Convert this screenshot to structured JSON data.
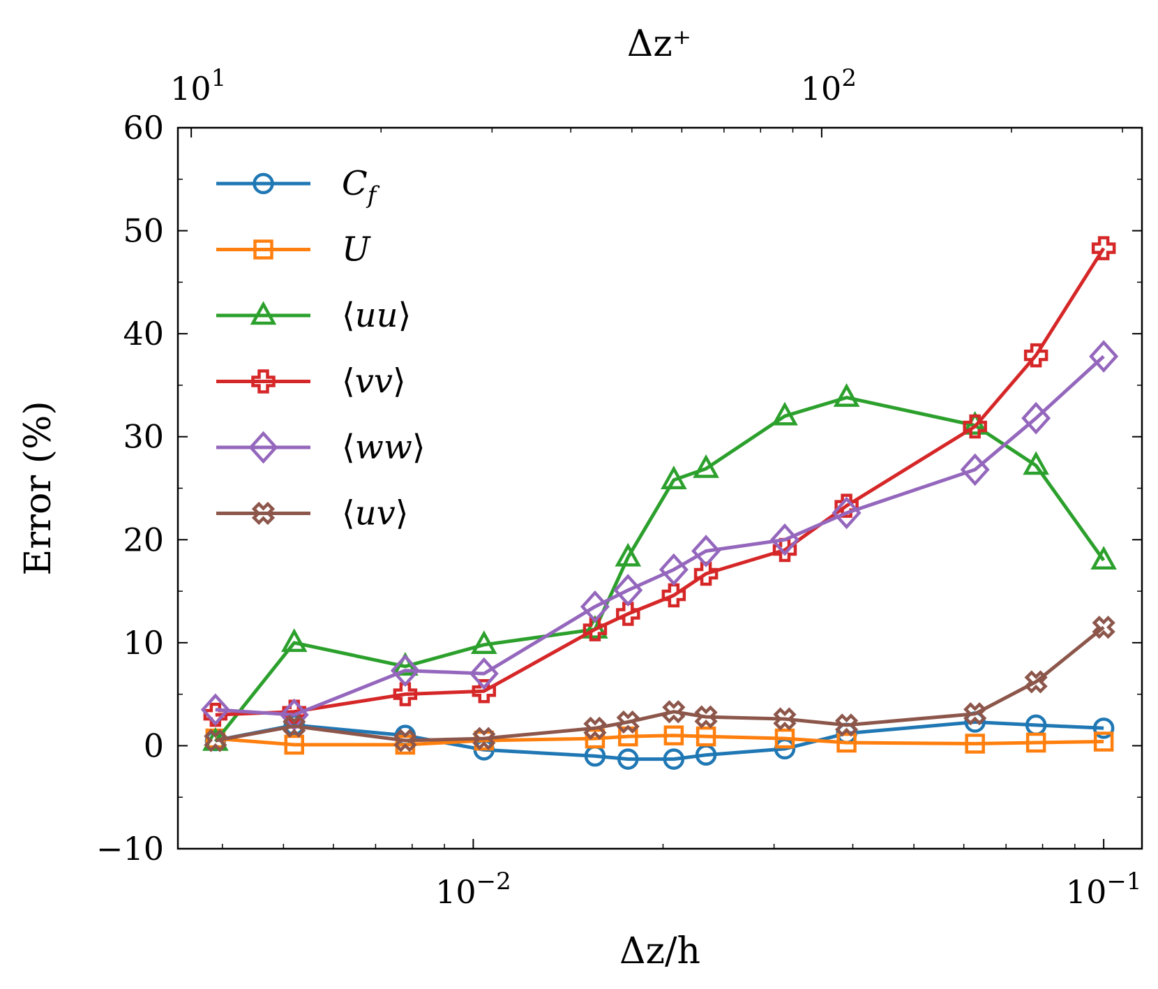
{
  "chart_data": {
    "type": "line",
    "xscale": "log",
    "xlabel": "Δz/h",
    "ylabel": "Error (%)",
    "top_xlabel": "Δz⁺",
    "xlim": [
      0.0034,
      0.115
    ],
    "ylim": [
      -10,
      60
    ],
    "yticks": [
      -10,
      0,
      10,
      20,
      30,
      40,
      50,
      60
    ],
    "ytick_labels": [
      "−10",
      "0",
      "10",
      "20",
      "30",
      "40",
      "50",
      "60"
    ],
    "xticks": [
      {
        "value": 0.01,
        "base": "10",
        "exp": "−2"
      },
      {
        "value": 0.1,
        "base": "10",
        "exp": "−1"
      }
    ],
    "top_xticks": [
      {
        "value": 0.00357,
        "base": "10",
        "exp": "1"
      },
      {
        "value": 0.0357,
        "base": "10",
        "exp": "2"
      }
    ],
    "top_xlim": [
      9.52,
      322
    ],
    "x": [
      0.0039,
      0.0052,
      0.0078,
      0.0104,
      0.0156,
      0.0176,
      0.0208,
      0.0234,
      0.0312,
      0.0391,
      0.0625,
      0.0781,
      0.1
    ],
    "series": [
      {
        "name": "C_f",
        "label_main": "C",
        "label_sub": "f",
        "label_pre": "",
        "label_post": "",
        "color": "#1f77b4",
        "marker": "circle",
        "x": [
          0.0039,
          0.0052,
          0.0078,
          0.0104,
          0.0156,
          0.0176,
          0.0208,
          0.0234,
          0.0312,
          0.0391,
          0.0625,
          0.0781,
          0.1
        ],
        "values": [
          0.5,
          2.0,
          1.0,
          -0.4,
          -1.0,
          -1.3,
          -1.3,
          -0.9,
          -0.3,
          1.2,
          2.3,
          2.0,
          1.7
        ]
      },
      {
        "name": "U",
        "label_main": "U",
        "label_sub": "",
        "label_pre": "",
        "label_post": "",
        "color": "#ff7f0e",
        "marker": "square",
        "x": [
          0.0039,
          0.0052,
          0.0078,
          0.0104,
          0.0156,
          0.0176,
          0.0208,
          0.0234,
          0.0312,
          0.0391,
          0.0625,
          0.0781,
          0.1
        ],
        "values": [
          0.7,
          0.1,
          0.1,
          0.5,
          0.7,
          0.9,
          1.0,
          0.9,
          0.7,
          0.3,
          0.2,
          0.3,
          0.4
        ]
      },
      {
        "name": "⟨uu⟩",
        "label_main": "uu",
        "label_sub": "",
        "label_pre": "⟨",
        "label_post": "⟩",
        "color": "#2ca02c",
        "marker": "triangle",
        "x": [
          0.0039,
          0.0052,
          0.0078,
          0.0104,
          0.0156,
          0.0176,
          0.0208,
          0.0234,
          0.0312,
          0.0391,
          0.0625,
          0.0781,
          0.1
        ],
        "values": [
          0.4,
          10.0,
          7.7,
          9.8,
          11.3,
          18.3,
          25.8,
          26.9,
          32.0,
          33.8,
          31.1,
          27.2,
          18.0
        ]
      },
      {
        "name": "⟨vv⟩",
        "label_main": "vv",
        "label_sub": "",
        "label_pre": "⟨",
        "label_post": "⟩",
        "color": "#d62728",
        "marker": "plus",
        "x": [
          0.0039,
          0.0052,
          0.0078,
          0.0104,
          0.0156,
          0.0176,
          0.0208,
          0.0234,
          0.0312,
          0.0391,
          0.0625,
          0.0781,
          0.1
        ],
        "values": [
          3.0,
          3.3,
          5.0,
          5.3,
          11.3,
          12.8,
          14.6,
          16.7,
          19.0,
          23.3,
          31.0,
          37.9,
          48.3
        ]
      },
      {
        "name": "⟨ww⟩",
        "label_main": "ww",
        "label_sub": "",
        "label_pre": "⟨",
        "label_post": "⟩",
        "color": "#9467bd",
        "marker": "diamond",
        "x": [
          0.0039,
          0.0052,
          0.0078,
          0.0104,
          0.0156,
          0.0176,
          0.0208,
          0.0234,
          0.0312,
          0.0391,
          0.0625,
          0.0781,
          0.1
        ],
        "values": [
          3.5,
          3.0,
          7.3,
          7.0,
          13.5,
          15.1,
          17.1,
          18.9,
          20.0,
          22.6,
          26.8,
          31.8,
          37.8
        ]
      },
      {
        "name": "⟨uv⟩",
        "label_main": "uv",
        "label_sub": "",
        "label_pre": "⟨",
        "label_post": "⟩",
        "color": "#8c564b",
        "marker": "xfilled",
        "x": [
          0.0039,
          0.0052,
          0.0078,
          0.0104,
          0.0156,
          0.0176,
          0.0208,
          0.0234,
          0.0312,
          0.0391,
          0.0625,
          0.0781,
          0.1
        ],
        "values": [
          0.5,
          1.9,
          0.5,
          0.7,
          1.7,
          2.3,
          3.3,
          2.8,
          2.6,
          2.0,
          3.1,
          6.2,
          11.5
        ]
      }
    ],
    "legend": "top-left",
    "grid": false
  }
}
